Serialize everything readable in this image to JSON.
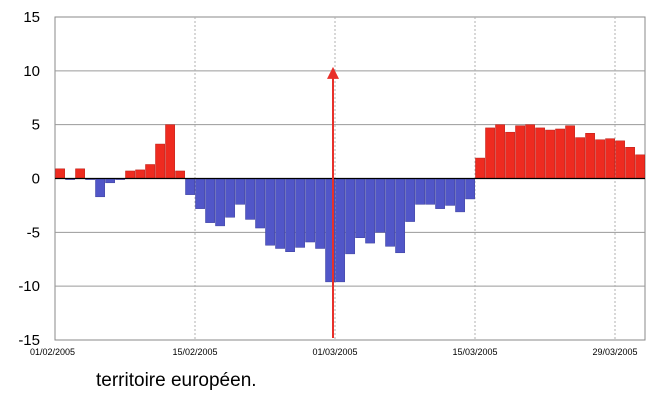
{
  "chart_data": {
    "type": "bar",
    "x_start": "01/02/2005",
    "x_end": "31/03/2005",
    "x_tick_labels": [
      "01/02/2005",
      "15/02/2005",
      "01/03/2005",
      "15/03/2005",
      "29/03/2005"
    ],
    "y_ticks": [
      "15",
      "10",
      "5",
      "0",
      "-5",
      "-10",
      "-15"
    ],
    "ylim": [
      -15,
      15
    ],
    "values": [
      0.9,
      -0.1,
      0.9,
      -0.1,
      -1.7,
      -0.4,
      -0.1,
      0.7,
      0.8,
      1.3,
      3.2,
      5.0,
      0.7,
      -1.5,
      -2.8,
      -4.1,
      -4.4,
      -3.6,
      -2.4,
      -3.8,
      -4.6,
      -6.2,
      -6.5,
      -6.8,
      -6.4,
      -5.9,
      -6.5,
      -9.6,
      -9.6,
      -7.0,
      -5.5,
      -6.0,
      -5.0,
      -6.3,
      -6.9,
      -4.0,
      -2.4,
      -2.4,
      -2.8,
      -2.5,
      -3.1,
      -1.9,
      1.9,
      4.7,
      5.0,
      4.3,
      4.9,
      5.0,
      4.7,
      4.5,
      4.6,
      4.9,
      3.8,
      4.2,
      3.6,
      3.7,
      3.5,
      2.9,
      2.2
    ],
    "positive_color": "#ee2b20",
    "negative_color": "#5156c8",
    "arrow_date": "01/03/2005",
    "arrow_color": "#e8302a",
    "arrow_top_value": 10,
    "arrow_bottom_value": -15,
    "grid": true
  },
  "caption": "territoire européen."
}
